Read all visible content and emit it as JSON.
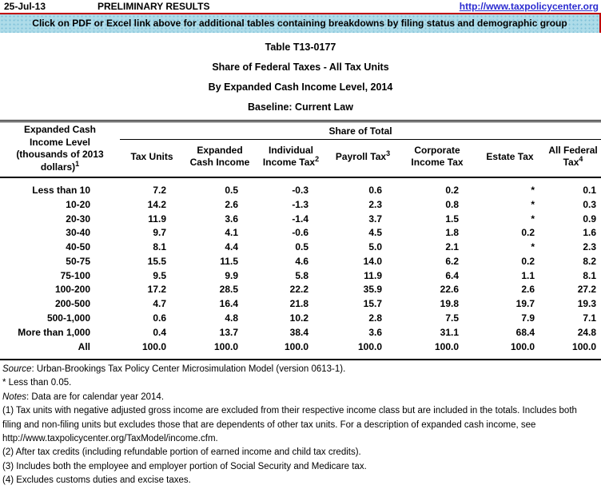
{
  "header": {
    "date": "25-Jul-13",
    "preliminary": "PRELIMINARY RESULTS",
    "url": "http://www.taxpolicycenter.org",
    "banner": "Click on PDF or Excel link above for additional tables containing breakdowns by filing status and demographic group"
  },
  "titles": [
    "Table T13-0177",
    "Share of Federal Taxes - All Tax Units",
    "By Expanded Cash Income Level, 2014",
    "Baseline: Current Law"
  ],
  "table": {
    "row_header": {
      "label": "Expanded Cash Income Level (thousands of 2013 dollars)",
      "sup": "1"
    },
    "group_header": "Share of Total",
    "columns": [
      {
        "label": "Tax Units",
        "sup": ""
      },
      {
        "label": "Expanded Cash Income",
        "sup": ""
      },
      {
        "label": "Individual Income Tax",
        "sup": "2"
      },
      {
        "label": "Payroll Tax",
        "sup": "3"
      },
      {
        "label": "Corporate Income Tax",
        "sup": ""
      },
      {
        "label": "Estate Tax",
        "sup": ""
      },
      {
        "label": "All Federal Tax",
        "sup": "4"
      }
    ],
    "rows": [
      {
        "label": "Less than 10",
        "values": [
          "7.2",
          "0.5",
          "-0.3",
          "0.6",
          "0.2",
          "*",
          "0.1"
        ]
      },
      {
        "label": "10-20",
        "values": [
          "14.2",
          "2.6",
          "-1.3",
          "2.3",
          "0.8",
          "*",
          "0.3"
        ]
      },
      {
        "label": "20-30",
        "values": [
          "11.9",
          "3.6",
          "-1.4",
          "3.7",
          "1.5",
          "*",
          "0.9"
        ]
      },
      {
        "label": "30-40",
        "values": [
          "9.7",
          "4.1",
          "-0.6",
          "4.5",
          "1.8",
          "0.2",
          "1.6"
        ]
      },
      {
        "label": "40-50",
        "values": [
          "8.1",
          "4.4",
          "0.5",
          "5.0",
          "2.1",
          "*",
          "2.3"
        ]
      },
      {
        "label": "50-75",
        "values": [
          "15.5",
          "11.5",
          "4.6",
          "14.0",
          "6.2",
          "0.2",
          "8.2"
        ]
      },
      {
        "label": "75-100",
        "values": [
          "9.5",
          "9.9",
          "5.8",
          "11.9",
          "6.4",
          "1.1",
          "8.1"
        ]
      },
      {
        "label": "100-200",
        "values": [
          "17.2",
          "28.5",
          "22.2",
          "35.9",
          "22.6",
          "2.6",
          "27.2"
        ]
      },
      {
        "label": "200-500",
        "values": [
          "4.7",
          "16.4",
          "21.8",
          "15.7",
          "19.8",
          "19.7",
          "19.3"
        ]
      },
      {
        "label": "500-1,000",
        "values": [
          "0.6",
          "4.8",
          "10.2",
          "2.8",
          "7.5",
          "7.9",
          "7.1"
        ]
      },
      {
        "label": "More than 1,000",
        "values": [
          "0.4",
          "13.7",
          "38.4",
          "3.6",
          "31.1",
          "68.4",
          "24.8"
        ]
      },
      {
        "label": "All",
        "values": [
          "100.0",
          "100.0",
          "100.0",
          "100.0",
          "100.0",
          "100.0",
          "100.0"
        ]
      }
    ]
  },
  "notes": {
    "source_label": "Source",
    "source_rest": ": Urban-Brookings Tax Policy Center Microsimulation Model (version 0613-1).",
    "asterisk": "* Less than 0.05.",
    "notes_label": "Notes",
    "notes_rest": ": Data are for calendar year 2014.",
    "items": [
      "(1) Tax units with negative adjusted gross income are excluded from their respective income class but are included in the totals. Includes both filing and non-filing units but excludes those that are dependents of other tax units. For a description of expanded cash income, see http://www.taxpolicycenter.org/TaxModel/income.cfm.",
      "(2) After tax credits (including refundable portion of earned income and child tax credits).",
      "(3) Includes both the employee and employer portion of Social Security and Medicare tax.",
      "(4) Excludes customs duties and excise taxes."
    ]
  },
  "colors": {
    "banner_bg": "#aedce9",
    "banner_border": "#c00000",
    "link": "#2b2bd0"
  }
}
